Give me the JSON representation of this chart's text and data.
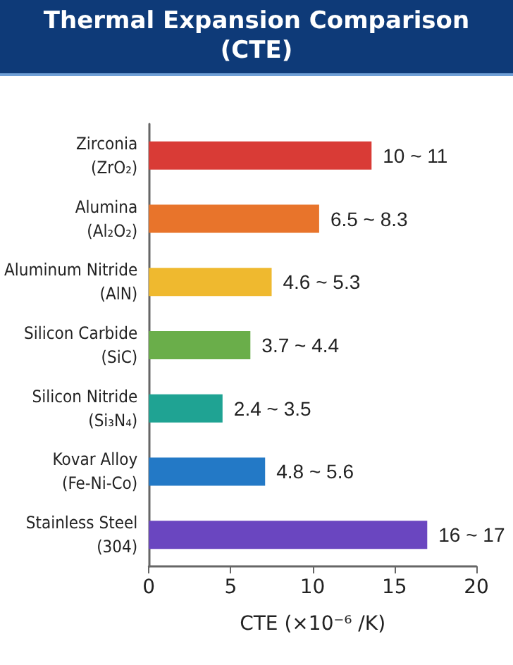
{
  "chart_data": {
    "type": "bar",
    "orientation": "horizontal",
    "title": "Thermal Expansion Comparison\n(CTE)",
    "xlabel": "CTE (×10⁻⁶ /K)",
    "categories": [
      "Zirconia\n(ZrO₂)",
      "Alumina\n(Al₂O₂)",
      "Aluminum Nitride\n(AlN)",
      "Silicon Carbide\n(SiC)",
      "Silicon Nitride\n(Si₃N₄)",
      "Kovar Alloy\n(Fe-Ni-Co)",
      "Stainless Steel\n(304)"
    ],
    "values": [
      13.6,
      10.4,
      7.5,
      6.2,
      4.5,
      7.1,
      17.0
    ],
    "colors": [
      "#d93b36",
      "#e8742b",
      "#efb92f",
      "#6aae4a",
      "#1fa393",
      "#2379c6",
      "#6a46c0"
    ],
    "annotations": [
      {
        "text": "10 ~ 11",
        "x": 13.6,
        "y": "Zirconia\n(ZrO₂)"
      },
      {
        "text": "6.5 ~ 8.3",
        "x": 10.4,
        "y": "Alumina\n(Al₂O₂)"
      },
      {
        "text": "4.6 ~ 5.3",
        "x": 7.5,
        "y": "Aluminum Nitride\n(AlN)"
      },
      {
        "text": "3.7 ~ 4.4",
        "x": 6.2,
        "y": "Silicon Carbide\n(SiC)"
      },
      {
        "text": "2.4 ~ 3.5",
        "x": 4.5,
        "y": "Silicon Nitride\n(Si₃N₄)"
      },
      {
        "text": "4.8 ~ 5.6",
        "x": 7.1,
        "y": "Kovar Alloy\n(Fe-Ni-Co)"
      },
      {
        "text": "16 ~ 17",
        "x": 17.0,
        "y": "Stainless Steel\n(304)"
      }
    ],
    "xlim": [
      0,
      20
    ],
    "xticks": [
      0,
      5,
      10,
      15,
      20
    ],
    "grid": false
  }
}
